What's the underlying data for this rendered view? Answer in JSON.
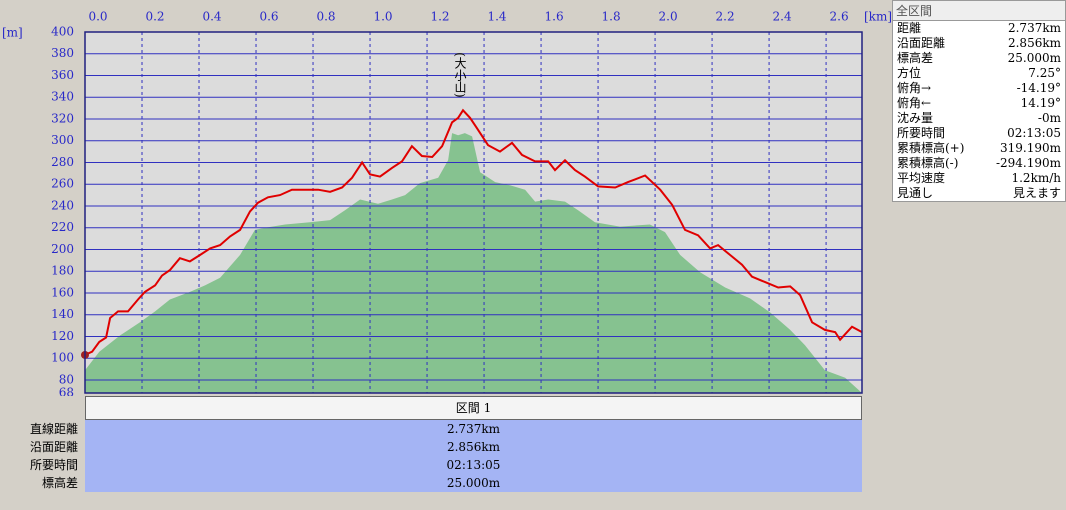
{
  "chart_data": {
    "type": "area",
    "x_unit": "[km]",
    "y_unit": "[m]",
    "xlim": [
      0,
      2.726
    ],
    "ylim": [
      68,
      400
    ],
    "xticks": [
      {
        "value": 0,
        "label": "0.0"
      },
      0.2,
      0.4,
      0.6,
      0.8,
      {
        "value": 1,
        "label": "1.0"
      },
      1.2,
      1.4,
      1.6,
      1.8,
      {
        "value": 2,
        "label": "2.0"
      },
      2.2,
      2.4,
      2.6
    ],
    "yticks": [
      68,
      80,
      100,
      120,
      140,
      160,
      180,
      200,
      220,
      240,
      260,
      280,
      300,
      320,
      340,
      360,
      380,
      400
    ],
    "grid": true,
    "series": [
      {
        "kind": "area",
        "color": "#86c290",
        "x": [
          0,
          0.05,
          0.123,
          0.193,
          0.246,
          0.298,
          0.368,
          0.421,
          0.474,
          0.544,
          0.596,
          0.632,
          0.702,
          0.789,
          0.86,
          0.912,
          0.965,
          1.028,
          1.077,
          1.123,
          1.175,
          1.239,
          1.274,
          1.288,
          1.309,
          1.333,
          1.358,
          1.386,
          1.439,
          1.491,
          1.544,
          1.579,
          1.625,
          1.684,
          1.73,
          1.789,
          1.877,
          1.982,
          2.035,
          2.088,
          2.158,
          2.246,
          2.333,
          2.404,
          2.474,
          2.526,
          2.596,
          2.667,
          2.726
        ],
        "values": [
          89,
          106,
          121,
          133,
          143,
          154,
          161,
          167,
          174,
          195,
          218,
          220,
          223,
          225,
          227,
          236,
          246,
          242,
          246,
          250,
          261,
          266,
          282,
          307,
          305,
          307,
          304,
          271,
          262,
          259,
          255,
          244,
          246,
          244,
          236,
          225,
          221,
          223,
          216,
          195,
          179,
          165,
          155,
          142,
          126,
          112,
          89,
          82,
          68
        ]
      },
      {
        "kind": "line",
        "color": "#e00000",
        "x": [
          0,
          0.025,
          0.05,
          0.074,
          0.088,
          0.116,
          0.151,
          0.186,
          0.21,
          0.246,
          0.27,
          0.298,
          0.333,
          0.368,
          0.404,
          0.439,
          0.474,
          0.509,
          0.544,
          0.579,
          0.607,
          0.642,
          0.684,
          0.726,
          0.772,
          0.818,
          0.86,
          0.902,
          0.937,
          0.972,
          1.0,
          1.035,
          1.077,
          1.112,
          1.147,
          1.182,
          1.218,
          1.253,
          1.288,
          1.309,
          1.326,
          1.351,
          1.379,
          1.414,
          1.456,
          1.498,
          1.533,
          1.579,
          1.625,
          1.649,
          1.684,
          1.719,
          1.754,
          1.8,
          1.86,
          1.905,
          1.965,
          2.018,
          2.06,
          2.105,
          2.151,
          2.193,
          2.221,
          2.263,
          2.305,
          2.34,
          2.386,
          2.432,
          2.474,
          2.509,
          2.551,
          2.596,
          2.632,
          2.649,
          2.691,
          2.726
        ],
        "values": [
          103,
          106,
          115,
          119,
          137,
          143,
          143,
          154,
          161,
          167,
          176,
          181,
          192,
          189,
          195,
          201,
          204,
          212,
          218,
          235,
          243,
          248,
          250,
          255,
          255,
          255,
          253,
          257,
          266,
          280,
          269,
          267,
          275,
          281,
          295,
          286,
          285,
          295,
          317,
          321,
          328,
          321,
          310,
          296,
          290,
          298,
          287,
          281,
          281,
          273,
          282,
          273,
          267,
          258,
          257,
          262,
          268,
          255,
          241,
          218,
          213,
          201,
          204,
          195,
          186,
          175,
          170,
          165,
          166,
          158,
          133,
          126,
          124,
          117,
          129,
          124
        ]
      }
    ],
    "annotations": [
      {
        "text": "(大小山)",
        "x": 1.326,
        "y": 328
      }
    ]
  },
  "side_panel": {
    "title": "全区間",
    "rows": [
      [
        "距離",
        "2.737km"
      ],
      [
        "沿面距離",
        "2.856km"
      ],
      [
        "標高差",
        "25.000m"
      ],
      [
        "方位",
        "7.25°"
      ],
      [
        "俯角→",
        "-14.19°"
      ],
      [
        "俯角←",
        "14.19°"
      ],
      [
        "沈み量",
        "-0m"
      ],
      [
        "所要時間",
        "02:13:05"
      ],
      [
        "累積標高(+)",
        "319.190m"
      ],
      [
        "累積標高(-)",
        "-294.190m"
      ],
      [
        "平均速度",
        "1.2km/h"
      ],
      [
        "見通し",
        "見えます"
      ]
    ]
  },
  "bottom_table": {
    "header": "区間 1",
    "rows": [
      [
        "直線距離",
        "2.737km"
      ],
      [
        "沿面距離",
        "2.856km"
      ],
      [
        "所要時間",
        "02:13:05"
      ],
      [
        "標高差",
        "25.000m"
      ]
    ]
  }
}
